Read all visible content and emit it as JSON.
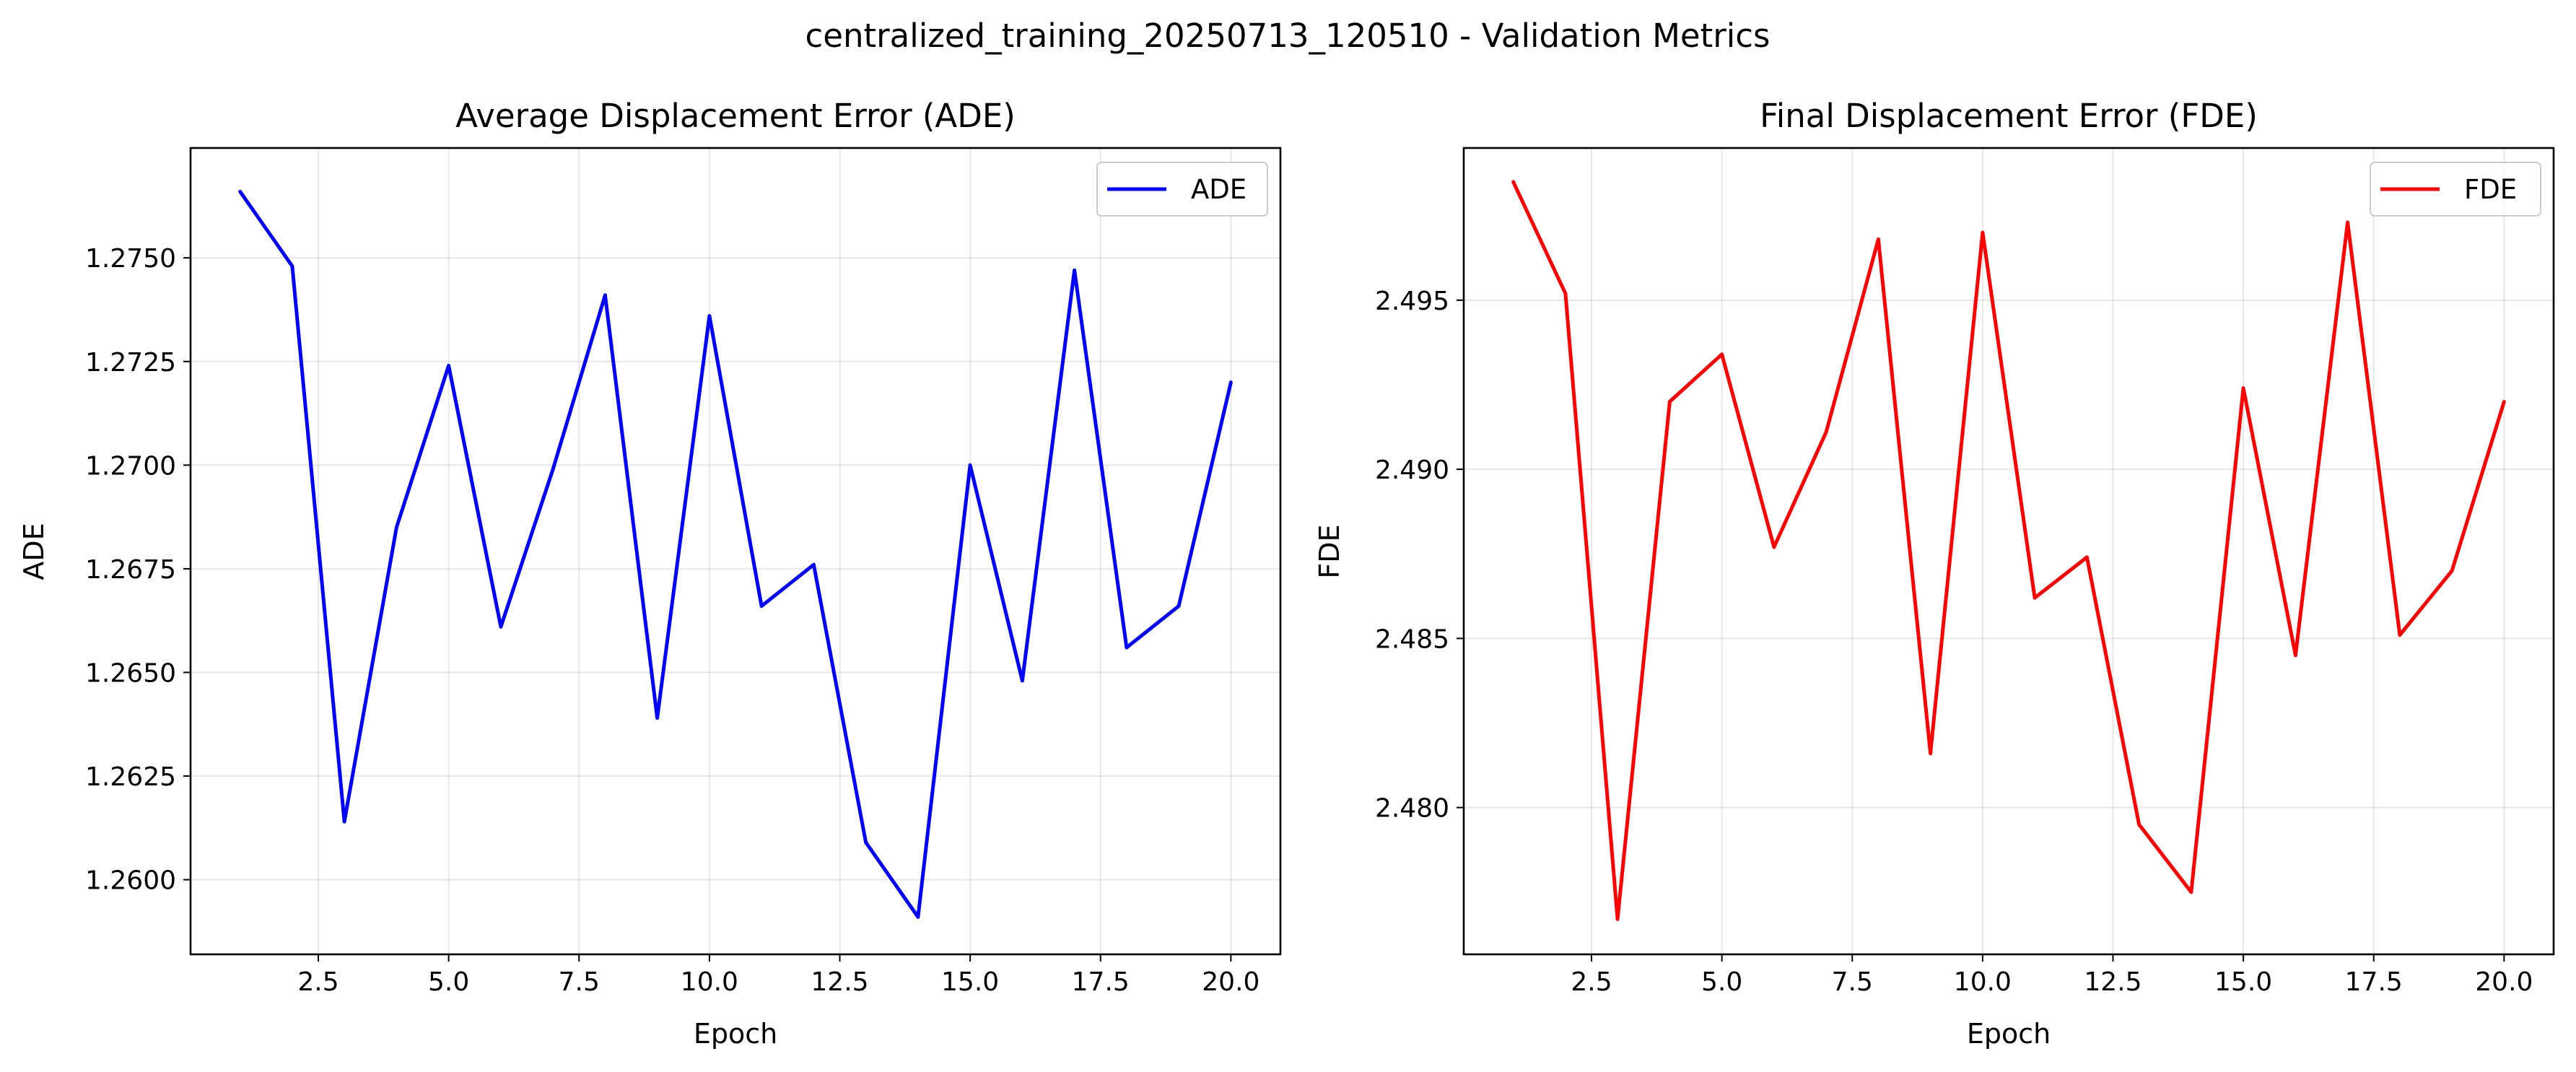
{
  "figure": {
    "title": "centralized_training_20250713_120510 - Validation Metrics"
  },
  "chart_data": [
    {
      "type": "line",
      "title": "Average Displacement Error (ADE)",
      "xlabel": "Epoch",
      "ylabel": "ADE",
      "xlim": [
        0.05,
        20.95
      ],
      "ylim": [
        1.2582,
        1.27765
      ],
      "xticks": [
        "2.5",
        "5.0",
        "7.5",
        "10.0",
        "12.5",
        "15.0",
        "17.5",
        "20.0"
      ],
      "yticks": [
        "1.2600",
        "1.2625",
        "1.2650",
        "1.2675",
        "1.2700",
        "1.2725",
        "1.2750"
      ],
      "grid": true,
      "legend_position": "upper right",
      "series": [
        {
          "name": "ADE",
          "color": "#0000ff",
          "x": [
            1,
            2,
            3,
            4,
            5,
            6,
            7,
            8,
            9,
            10,
            11,
            12,
            13,
            14,
            15,
            16,
            17,
            18,
            19,
            20
          ],
          "values": [
            1.2766,
            1.2748,
            1.2614,
            1.2685,
            1.2724,
            1.2661,
            1.2699,
            1.2741,
            1.2639,
            1.2736,
            1.2666,
            1.2676,
            1.2609,
            1.2591,
            1.27,
            1.2648,
            1.2747,
            1.2656,
            1.2666,
            1.272
          ]
        }
      ]
    },
    {
      "type": "line",
      "title": "Final Displacement Error (FDE)",
      "xlabel": "Epoch",
      "ylabel": "FDE",
      "xlim": [
        0.05,
        20.95
      ],
      "ylim": [
        2.47566,
        2.4995
      ],
      "xticks": [
        "2.5",
        "5.0",
        "7.5",
        "10.0",
        "12.5",
        "15.0",
        "17.5",
        "20.0"
      ],
      "yticks": [
        "2.480",
        "2.485",
        "2.490",
        "2.495"
      ],
      "grid": true,
      "legend_position": "upper right",
      "series": [
        {
          "name": "FDE",
          "color": "#ff0000",
          "x": [
            1,
            2,
            3,
            4,
            5,
            6,
            7,
            8,
            9,
            10,
            11,
            12,
            13,
            14,
            15,
            16,
            17,
            18,
            19,
            20
          ],
          "values": [
            2.4985,
            2.4952,
            2.4767,
            2.492,
            2.4934,
            2.4877,
            2.4911,
            2.4968,
            2.4816,
            2.497,
            2.4862,
            2.4874,
            2.4795,
            2.4775,
            2.4924,
            2.4845,
            2.4973,
            2.4851,
            2.487,
            2.492
          ]
        }
      ]
    }
  ]
}
